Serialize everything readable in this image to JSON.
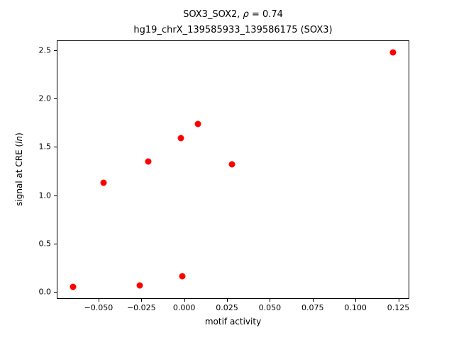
{
  "figure": {
    "title_line1": {
      "prefix": "SOX3_SOX2, ",
      "rho": "ρ",
      "suffix": " = 0.74"
    },
    "title_line2": "hg19_chrX_139585933_139586175 (SOX3)",
    "xlabel": "motif activity",
    "ylabel": {
      "prefix": "signal at CRE (",
      "italic": "ln",
      "suffix": ")"
    },
    "marker_color": "#ff0000"
  },
  "chart_data": {
    "type": "scatter",
    "title": "SOX3_SOX2, ρ = 0.74\nhg19_chrX_139585933_139586175 (SOX3)",
    "xlabel": "motif activity",
    "ylabel": "signal at CRE (ln)",
    "xlim": [
      -0.0744,
      0.1314
    ],
    "ylim": [
      -0.071,
      2.601
    ],
    "grid": false,
    "legend": null,
    "marker": "circle",
    "color": "#ff0000",
    "xticks": {
      "values": [
        -0.05,
        -0.025,
        0.0,
        0.025,
        0.05,
        0.075,
        0.1,
        0.125
      ],
      "labels": [
        "−0.050",
        "−0.025",
        "0.000",
        "0.025",
        "0.050",
        "0.075",
        "0.100",
        "0.125"
      ]
    },
    "yticks": {
      "values": [
        0.0,
        0.5,
        1.0,
        1.5,
        2.0,
        2.5
      ],
      "labels": [
        "0.0",
        "0.5",
        "1.0",
        "1.5",
        "2.0",
        "2.5"
      ]
    },
    "points": [
      [
        -0.065,
        0.05
      ],
      [
        -0.047,
        1.13
      ],
      [
        -0.026,
        0.07
      ],
      [
        -0.021,
        1.35
      ],
      [
        -0.002,
        1.59
      ],
      [
        -0.001,
        0.16
      ],
      [
        0.008,
        1.74
      ],
      [
        0.028,
        1.32
      ],
      [
        0.122,
        2.48
      ]
    ]
  }
}
